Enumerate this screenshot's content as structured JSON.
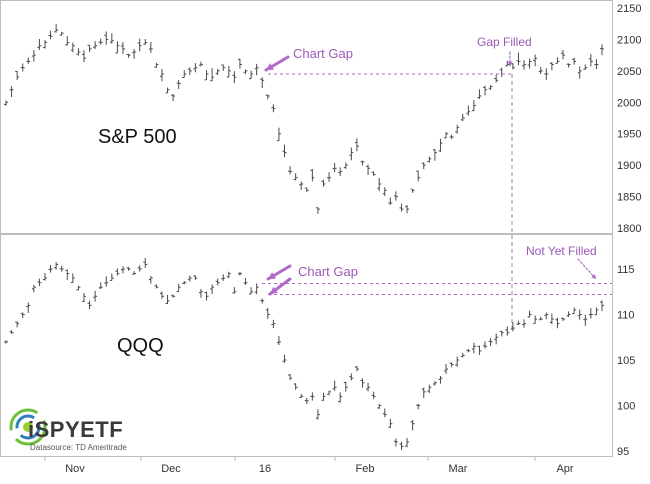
{
  "colors": {
    "bar": "#4a4a4a",
    "accent": "#b06ac8",
    "axis": "#bdbdbd",
    "panel_bg": "#ffffff"
  },
  "logo": {
    "text": "iSPYETF",
    "subtitle": "Datasource: TD Ameritrade"
  },
  "x_axis": {
    "ticks": [
      "Nov",
      "Dec",
      "16",
      "Feb",
      "Mar",
      "Apr"
    ]
  },
  "chart_data": [
    {
      "type": "ohlc",
      "title": "S&P 500",
      "ylim": [
        1800,
        2150
      ],
      "yticks": [
        1800,
        1850,
        1900,
        1950,
        2000,
        2050,
        2100,
        2150
      ],
      "grid": false,
      "gap_level": 2045,
      "annotations": [
        "Chart Gap",
        "Gap Filled"
      ],
      "series": [
        {
          "values": [
            2000,
            2020,
            2040,
            2055,
            2065,
            2075,
            2090,
            2095,
            2105,
            2115,
            2110,
            2095,
            2090,
            2080,
            2070,
            2085,
            2090,
            2095,
            2100,
            2098,
            2090,
            2085,
            2075,
            2080,
            2090,
            2095,
            2085,
            2060,
            2045,
            2020,
            2010,
            2030,
            2045,
            2050,
            2055,
            2060,
            2045,
            2040,
            2050,
            2055,
            2050,
            2040,
            2060,
            2050,
            2045,
            2055,
            2035,
            2010,
            1990,
            1950,
            1920,
            1890,
            1880,
            1870,
            1860,
            1880,
            1830,
            1870,
            1880,
            1895,
            1890,
            1900,
            1920,
            1930,
            1905,
            1895,
            1885,
            1870,
            1860,
            1840,
            1850,
            1830,
            1830,
            1860,
            1880,
            1900,
            1910,
            1920,
            1935,
            1950,
            1945,
            1960,
            1975,
            1985,
            1995,
            2010,
            2020,
            2025,
            2035,
            2045,
            2060,
            2055,
            2065,
            2060,
            2065,
            2070,
            2050,
            2045,
            2060,
            2065,
            2075,
            2060,
            2065,
            2050,
            2055,
            2065,
            2060,
            2085
          ]
        }
      ]
    },
    {
      "type": "ohlc",
      "title": "QQQ",
      "ylim": [
        95,
        115
      ],
      "yticks": [
        95,
        100,
        105,
        110,
        115
      ],
      "grid": false,
      "gap_level": 112.2,
      "not_filled_level": 113.4,
      "annotations": [
        "Chart Gap",
        "Not Yet Filled"
      ],
      "series": [
        {
          "values": [
            107,
            108,
            109,
            110,
            111,
            113,
            113.5,
            114,
            115,
            115.5,
            115,
            114.5,
            114,
            113,
            112,
            111,
            112,
            113,
            113.5,
            114,
            114.5,
            115,
            115,
            114.5,
            115,
            115.5,
            114,
            113,
            112,
            111.5,
            112,
            113,
            113.5,
            114,
            114,
            112.5,
            112,
            113,
            113.5,
            114,
            114.5,
            112.5,
            114.5,
            113.5,
            112.5,
            113,
            111.5,
            110,
            109,
            107,
            105,
            103,
            102,
            101,
            100.5,
            101,
            99,
            101,
            101.5,
            102,
            101,
            102,
            103,
            104,
            102.5,
            102,
            101,
            100,
            99,
            98,
            96,
            95.5,
            96,
            98,
            100,
            101.5,
            102,
            102.5,
            103,
            104,
            104.5,
            105,
            105.5,
            106,
            106.5,
            106,
            106.5,
            107,
            107.5,
            108,
            108,
            108.5,
            109,
            109,
            110,
            109.5,
            109.5,
            110,
            109.5,
            109,
            109.5,
            110,
            110.5,
            110,
            109.5,
            110,
            110.5,
            111
          ]
        }
      ]
    }
  ]
}
